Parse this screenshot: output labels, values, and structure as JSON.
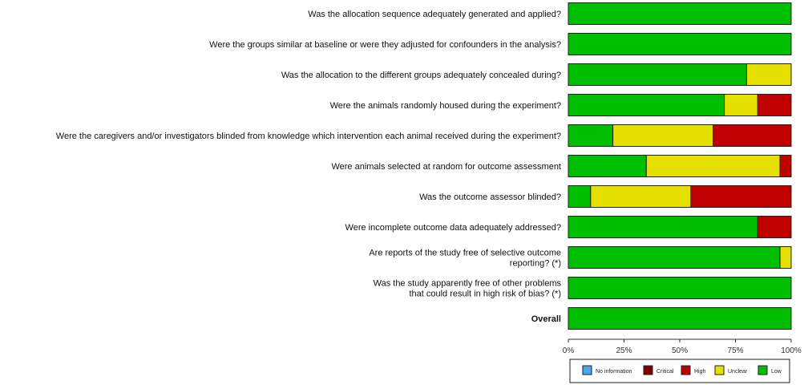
{
  "chart_data": {
    "type": "bar",
    "orientation": "horizontal-stacked",
    "categories": [
      [
        "Was the allocation sequence adequately generated and applied?"
      ],
      [
        "Were the groups similar at baseline or were they adjusted for confounders in the analysis?"
      ],
      [
        "Was the allocation to the different groups adequately concealed during?"
      ],
      [
        "Were the animals randomly housed during the experiment?"
      ],
      [
        "Were the caregivers and/or investigators blinded from knowledge which intervention each animal received during the experiment?"
      ],
      [
        "Were animals selected at random for outcome assessment"
      ],
      [
        "Was the outcome assessor blinded?"
      ],
      [
        "Were incomplete outcome data adequately addressed?"
      ],
      [
        "Are reports of the study free of selective outcome",
        "reporting? (*)"
      ],
      [
        "Was the study apparently free of other problems",
        "that could result in high risk of bias? (*)"
      ],
      [
        "Overall"
      ]
    ],
    "series": [
      {
        "name": "Low",
        "color": "#00bf00",
        "values": [
          100,
          100,
          80,
          70,
          20,
          35,
          10,
          85,
          95,
          100,
          100
        ]
      },
      {
        "name": "Unclear",
        "color": "#e5e000",
        "values": [
          0,
          0,
          20,
          15,
          45,
          60,
          45,
          0,
          5,
          0,
          0
        ]
      },
      {
        "name": "High",
        "color": "#c00000",
        "values": [
          0,
          0,
          0,
          15,
          35,
          5,
          45,
          15,
          0,
          0,
          0
        ]
      },
      {
        "name": "Critical",
        "color": "#800000",
        "values": [
          0,
          0,
          0,
          0,
          0,
          0,
          0,
          0,
          0,
          0,
          0
        ]
      },
      {
        "name": "No information",
        "color": "#4aa6ee",
        "values": [
          0,
          0,
          0,
          0,
          0,
          0,
          0,
          0,
          0,
          0,
          0
        ]
      }
    ],
    "xlim": [
      0,
      100
    ],
    "x_ticks": [
      "0%",
      "25%",
      "50%",
      "75%",
      "100%"
    ],
    "legend": {
      "placement": "bottom",
      "entries": [
        "No information",
        "Critical",
        "High",
        "Unclear",
        "Low"
      ]
    },
    "grid": false
  }
}
